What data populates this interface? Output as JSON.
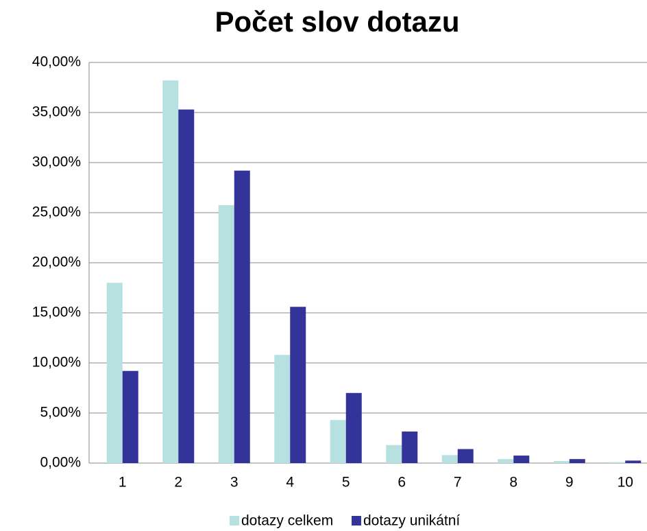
{
  "chart_data": {
    "type": "bar",
    "title": "Počet slov dotazu",
    "categories": [
      "1",
      "2",
      "3",
      "4",
      "5",
      "6",
      "7",
      "8",
      "9",
      "10"
    ],
    "series": [
      {
        "name": "dotazy celkem",
        "color": "#b7e0e0",
        "values": [
          18.0,
          38.2,
          25.75,
          10.8,
          4.3,
          1.8,
          0.8,
          0.4,
          0.2,
          0.1
        ]
      },
      {
        "name": "dotazy unikátní",
        "color": "#333399",
        "values": [
          9.2,
          35.3,
          29.2,
          15.6,
          7.0,
          3.15,
          1.4,
          0.75,
          0.4,
          0.25
        ]
      }
    ],
    "ylim": [
      0,
      40
    ],
    "yticks": [
      {
        "value": 0,
        "label": "0,00%"
      },
      {
        "value": 5,
        "label": "5,00%"
      },
      {
        "value": 10,
        "label": "10,00%"
      },
      {
        "value": 15,
        "label": "15,00%"
      },
      {
        "value": 20,
        "label": "20,00%"
      },
      {
        "value": 25,
        "label": "25,00%"
      },
      {
        "value": 30,
        "label": "30,00%"
      },
      {
        "value": 35,
        "label": "35,00%"
      },
      {
        "value": 40,
        "label": "40,00%"
      }
    ],
    "grid": true,
    "legend": "bottom"
  }
}
